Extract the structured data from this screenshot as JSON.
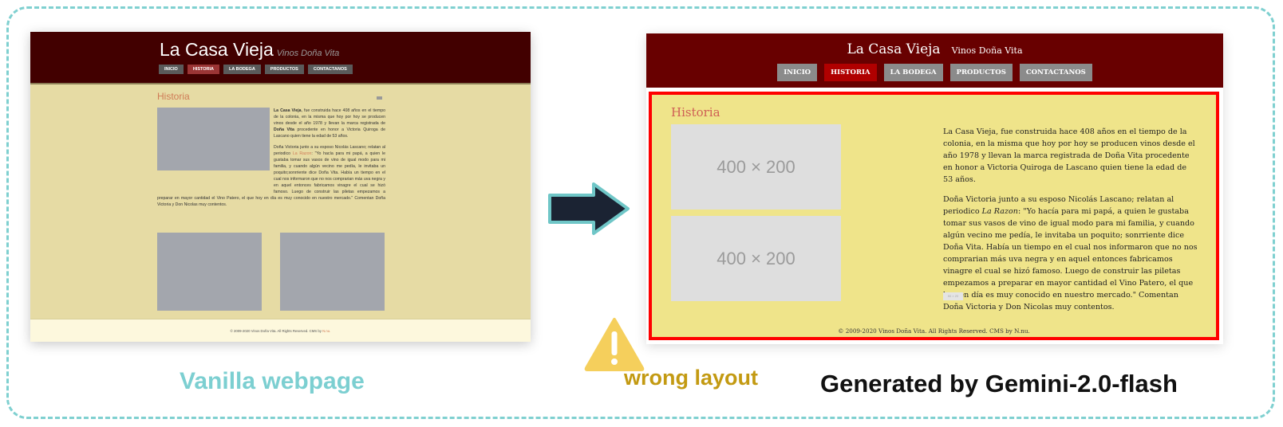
{
  "vanilla": {
    "site_title": "La Casa Vieja",
    "site_subtitle": "Vinos Doña Vita",
    "nav": [
      {
        "label": "INICIO",
        "active": false
      },
      {
        "label": "HISTORIA",
        "active": true
      },
      {
        "label": "LA BODEGA",
        "active": false
      },
      {
        "label": "PRODUCTOS",
        "active": false
      },
      {
        "label": "CONTACTANOS",
        "active": false
      }
    ],
    "heading": "Historia",
    "para1_bold": "La Casa Vieja",
    "para1_a": ", fue construida hace 408 años en el tiempo de la colonia, en la misma que hoy por hoy se producen vinos desde el año 1978 y llevan la marca registrada de ",
    "para1_bold2": "Doña Vita",
    "para1_b": " procedente en honor a Victoria Quiroga de Lascano quien tiene la edad de 53 años.",
    "para2_a": "Doña Victoria junto a su esposo Nicolás Lascano; relatan al periodico ",
    "para2_link": "La Razon",
    "para2_b": ": \"Yo hacía para mi papá, a quien le gustaba tomar sus vasos de vino de igual modo para mi familia, y cuando algún vecino me pedía, le invitaba un poquito;sonrriente dice Doña Vita. Había un tiempo en el cual nos informaron que no nos comprarian más uva negra y en aquel entonces fabricamos vinagre el cual se hizó famoso. Luego de construir las piletas empezamos a preparar en mayor cantidad el Vino Patero, el que hoy en día es muy conocido en nuestro mercado.\" Comentan Doña Victoria y Don Nicolas muy contentos.",
    "footer_a": "© 2009-2020 Vinos Doña Vita. All Rights Reserved. CMS by ",
    "footer_link": "N.nu."
  },
  "gemini": {
    "site_title": "La Casa Vieja",
    "site_subtitle": "Vinos Doña Vita",
    "nav": [
      {
        "label": "INICIO",
        "active": false
      },
      {
        "label": "HISTORIA",
        "active": true
      },
      {
        "label": "LA BODEGA",
        "active": false
      },
      {
        "label": "PRODUCTOS",
        "active": false
      },
      {
        "label": "CONTACTANOS",
        "active": false
      }
    ],
    "heading": "Historia",
    "image_placeholder_1": "400 × 200",
    "image_placeholder_2": "400 × 200",
    "small_placeholder": "50 × 20",
    "para1": "La Casa Vieja, fue construida hace 408 años en el tiempo de la colonia, en la misma que hoy por hoy se producen vinos desde el año 1978 y llevan la marca registrada de Doña Vita procedente en honor a Victoria Quiroga de Lascano quien tiene la edad de 53 años.",
    "para2_a": "Doña Victoria junto a su esposo Nicolás Lascano; relatan al periodico ",
    "para2_italic": "La Razon",
    "para2_b": ": \"Yo hacía para mi papá, a quien le gustaba tomar sus vasos de vino de igual modo para mi familia, y cuando algún vecino me pedía, le invitaba un poquito; sonrriente dice Doña Vita. Había un tiempo en el cual nos informaron que no nos comprarian más uva negra y en aquel entonces fabricamos vinagre el cual se hizó famoso. Luego de construir las piletas empezamos a preparar en mayor cantidad el Vino Patero, el que hoy en día es muy conocido en nuestro mercado.\" Comentan Doña Victoria y Don Nicolas muy contentos.",
    "footer": "© 2009-2020 Vinos Doña Vita. All Rights Reserved. CMS by N.nu."
  },
  "captions": {
    "left": "Vanilla webpage",
    "warning": "wrong layout",
    "right": "Generated by Gemini-2.0-flash"
  },
  "colors": {
    "dashed_border": "#7fd0d0",
    "highlight_border": "#ff0000",
    "warning": "#f5cf5c",
    "arrow_fill": "#1b2333",
    "arrow_stroke": "#6fc6c7"
  },
  "icons": {
    "arrow": "right-arrow-icon",
    "warning": "warning-triangle-icon"
  }
}
